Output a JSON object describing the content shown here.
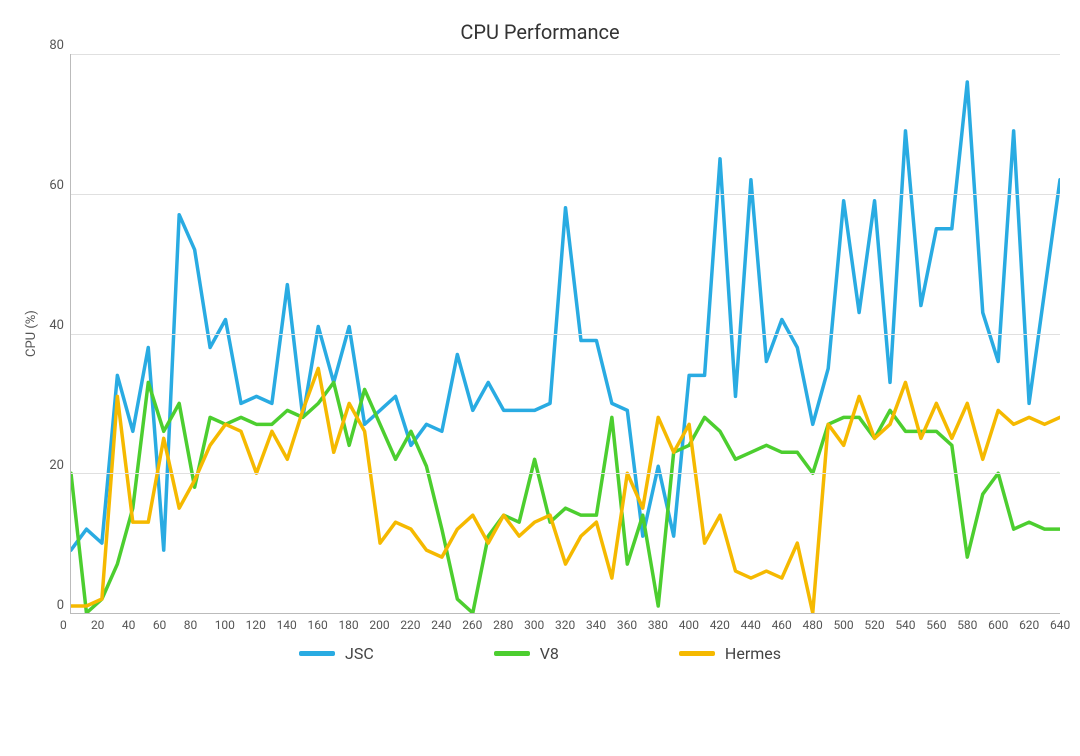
{
  "chart": {
    "type": "line",
    "title": "CPU Performance",
    "title_fontsize": 20,
    "ylabel": "CPU (%)",
    "label_fontsize": 13,
    "tick_fontsize": 13,
    "background_color": "#ffffff",
    "grid_color": "#e0e0e0",
    "axis_color": "#bbbbbb",
    "text_color": "#555555",
    "xlim": [
      0,
      640
    ],
    "ylim": [
      0,
      80
    ],
    "xtick_step": 20,
    "ytick_step": 20,
    "line_width": 3.5,
    "x": [
      0,
      10,
      20,
      30,
      40,
      50,
      60,
      70,
      80,
      90,
      100,
      110,
      120,
      130,
      140,
      150,
      160,
      170,
      180,
      190,
      200,
      210,
      220,
      230,
      240,
      250,
      260,
      270,
      280,
      290,
      300,
      310,
      320,
      330,
      340,
      350,
      360,
      370,
      380,
      390,
      400,
      410,
      420,
      430,
      440,
      450,
      460,
      470,
      480,
      490,
      500,
      510,
      520,
      530,
      540,
      550,
      560,
      570,
      580,
      590,
      600,
      610,
      620,
      630,
      640
    ],
    "series": [
      {
        "name": "JSC",
        "color": "#29abe2",
        "y": [
          9,
          12,
          10,
          34,
          26,
          38,
          9,
          57,
          52,
          38,
          42,
          30,
          31,
          30,
          47,
          28,
          41,
          33,
          41,
          27,
          29,
          31,
          24,
          27,
          26,
          37,
          29,
          33,
          29,
          29,
          29,
          30,
          58,
          39,
          39,
          30,
          29,
          11,
          21,
          11,
          34,
          34,
          65,
          31,
          62,
          36,
          42,
          38,
          27,
          35,
          59,
          43,
          59,
          33,
          69,
          44,
          55,
          55,
          76,
          43,
          36,
          69,
          30,
          46,
          62
        ]
      },
      {
        "name": "V8",
        "color": "#4cce2f",
        "y": [
          20,
          0,
          2,
          7,
          15,
          33,
          26,
          30,
          18,
          28,
          27,
          28,
          27,
          27,
          29,
          28,
          30,
          33,
          24,
          32,
          27,
          22,
          26,
          21,
          12,
          2,
          0,
          11,
          14,
          13,
          22,
          13,
          15,
          14,
          14,
          28,
          7,
          14,
          1,
          23,
          24,
          28,
          26,
          22,
          23,
          24,
          23,
          23,
          20,
          27,
          28,
          28,
          25,
          29,
          26,
          26,
          26,
          24,
          8,
          17,
          20,
          12,
          13,
          12,
          12
        ]
      },
      {
        "name": "Hermes",
        "color": "#f5b900",
        "y": [
          1,
          1,
          2,
          31,
          13,
          13,
          25,
          15,
          19,
          24,
          27,
          26,
          20,
          26,
          22,
          29,
          35,
          23,
          30,
          26,
          10,
          13,
          12,
          9,
          8,
          12,
          14,
          10,
          14,
          11,
          13,
          14,
          7,
          11,
          13,
          5,
          20,
          15,
          28,
          23,
          27,
          10,
          14,
          6,
          5,
          6,
          5,
          10,
          0,
          27,
          24,
          31,
          25,
          27,
          33,
          25,
          30,
          25,
          30,
          22,
          29,
          27,
          28,
          27,
          28
        ]
      }
    ],
    "legend_gap": 120,
    "legend_fontsize": 16
  }
}
